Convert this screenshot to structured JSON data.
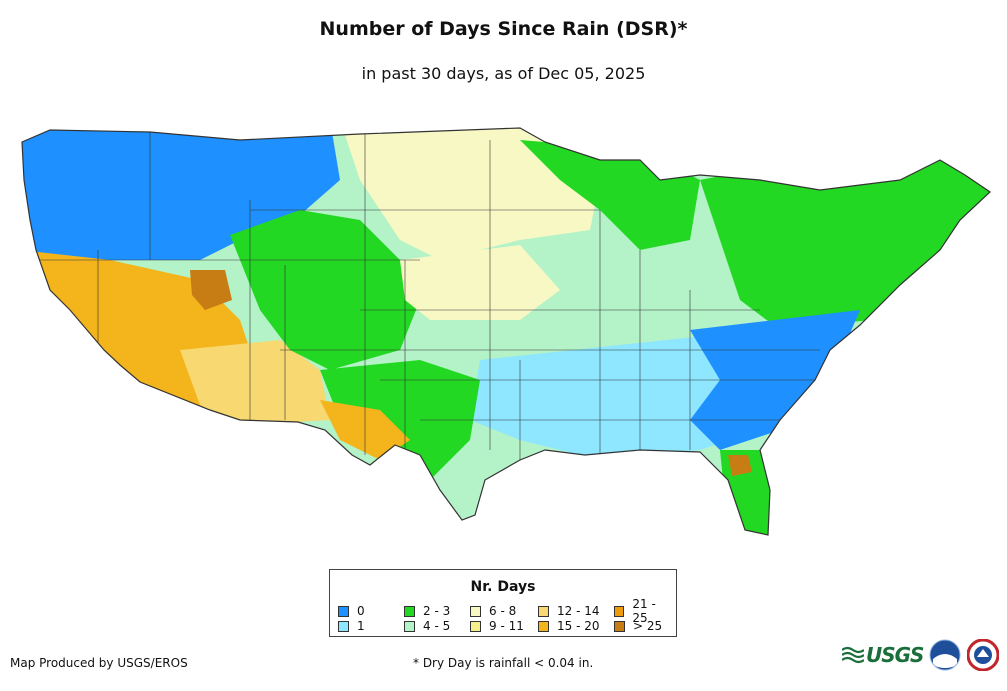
{
  "title": "Number of Days Since Rain (DSR)*",
  "subtitle": "in past 30 days, as of Dec 05, 2025",
  "legend": {
    "title": "Nr. Days",
    "items": [
      {
        "label": "0",
        "color": "#1e90ff"
      },
      {
        "label": "1",
        "color": "#8ee6ff"
      },
      {
        "label": "2 - 3",
        "color": "#22d822"
      },
      {
        "label": "4 - 5",
        "color": "#b4f2c8"
      },
      {
        "label": "6 - 8",
        "color": "#f8f8c4"
      },
      {
        "label": "9 - 11",
        "color": "#f4f08c"
      },
      {
        "label": "12 - 14",
        "color": "#f8d870"
      },
      {
        "label": "15 - 20",
        "color": "#f4b41c"
      },
      {
        "label": "21 - 25",
        "color": "#ec9c0c"
      },
      {
        "label": "> 25",
        "color": "#c87c14"
      }
    ]
  },
  "footer": {
    "credit": "Map Produced by USGS/EROS",
    "note": "* Dry Day is rainfall < 0.04 in."
  },
  "logos": {
    "usgs_text": "USGS",
    "usgs_color": "#1a6e3a",
    "noaa_name": "noaa-logo-icon",
    "nws_name": "nws-logo-icon"
  },
  "map": {
    "region": "Contiguous United States",
    "border_color": "#333333",
    "legend_item_count": 10
  }
}
